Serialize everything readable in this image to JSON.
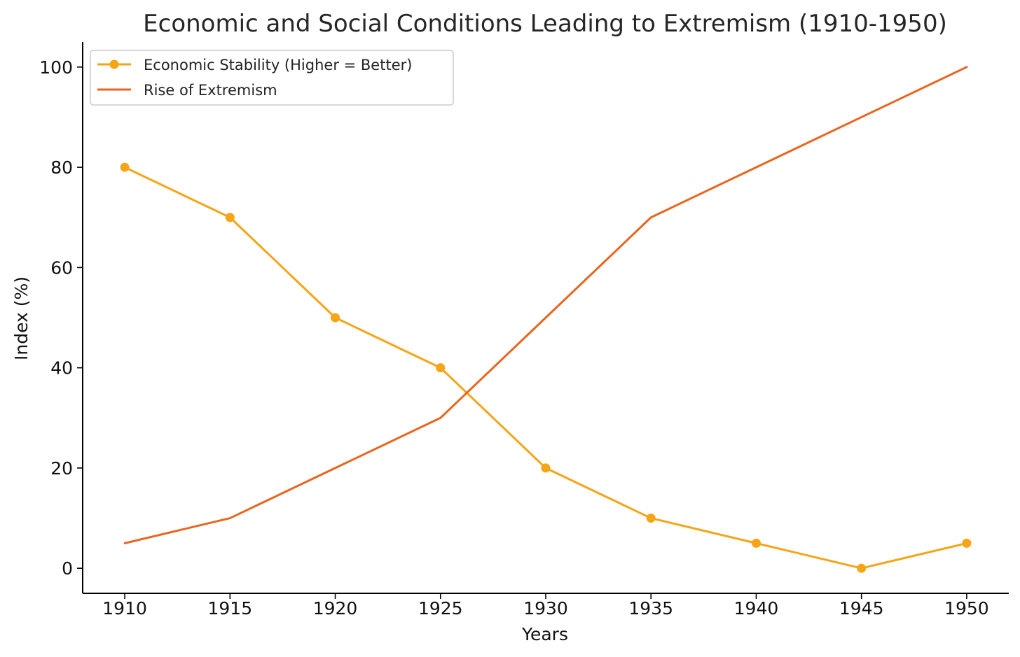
{
  "chart_data": {
    "type": "line",
    "title": "Economic and Social Conditions Leading to Extremism (1910-1950)",
    "xlabel": "Years",
    "ylabel": "Index (%)",
    "x": [
      1910,
      1915,
      1920,
      1925,
      1930,
      1935,
      1940,
      1945,
      1950
    ],
    "x_ticks": [
      "1910",
      "1915",
      "1920",
      "1925",
      "1930",
      "1935",
      "1940",
      "1945",
      "1950"
    ],
    "y_ticks": [
      "0",
      "20",
      "40",
      "60",
      "80",
      "100"
    ],
    "xlim": [
      1908,
      1952
    ],
    "ylim": [
      -5,
      105
    ],
    "grid": false,
    "legend_position": "top-left",
    "series": [
      {
        "name": "Economic Stability (Higher = Better)",
        "values": [
          80,
          70,
          50,
          40,
          20,
          10,
          5,
          0,
          5
        ],
        "color": "#F5A516",
        "marker": "circle"
      },
      {
        "name": "Rise of Extremism",
        "values": [
          5,
          10,
          20,
          30,
          50,
          70,
          80,
          90,
          100
        ],
        "color": "#E8661F",
        "marker": "none"
      }
    ]
  }
}
